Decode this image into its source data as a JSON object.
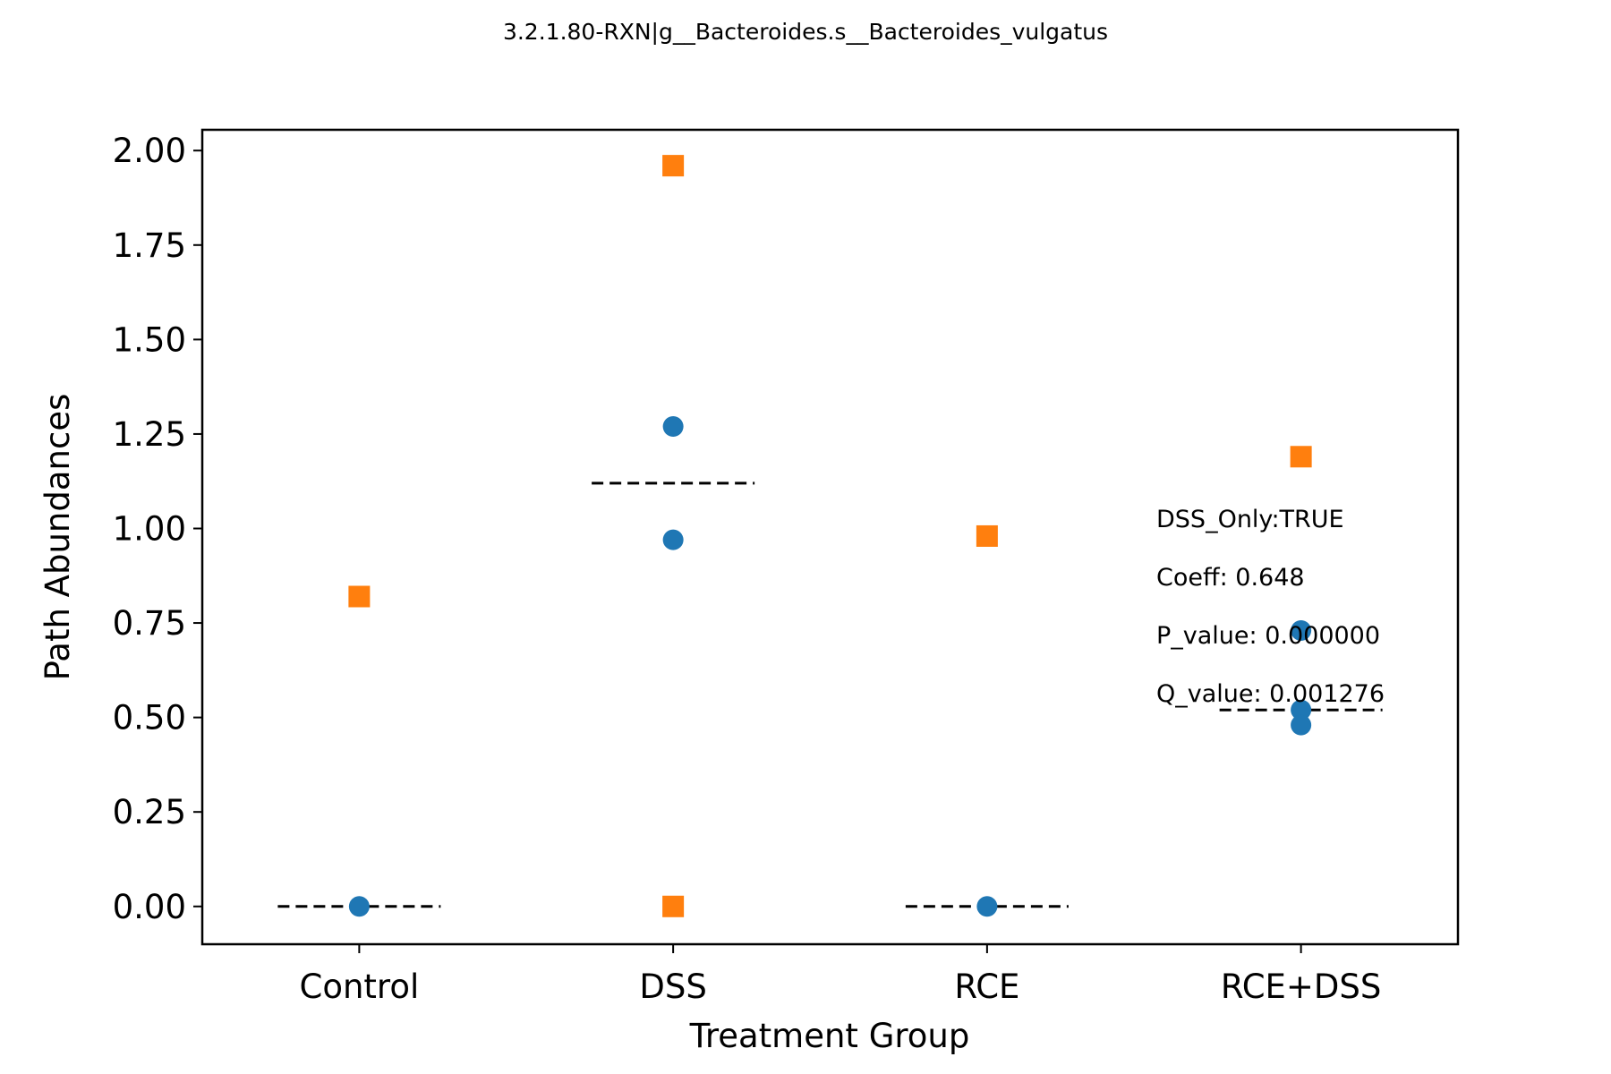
{
  "chart_data": {
    "type": "scatter",
    "title": "3.2.1.80-RXN|g__Bacteroides.s__Bacteroides_vulgatus",
    "xlabel": "Treatment Group",
    "ylabel": "Path Abundances",
    "categories": [
      "Control",
      "DSS",
      "RCE",
      "RCE+DSS"
    ],
    "ylim": [
      -0.1,
      2.055
    ],
    "yticks": [
      "0.00",
      "0.25",
      "0.50",
      "0.75",
      "1.00",
      "1.25",
      "1.50",
      "1.75",
      "2.00"
    ],
    "grid": false,
    "series": [
      {
        "marker": "circle",
        "color": "#1f77b4",
        "points": [
          {
            "x": "Control",
            "y": 0.0
          },
          {
            "x": "DSS",
            "y": 1.27
          },
          {
            "x": "DSS",
            "y": 0.97
          },
          {
            "x": "RCE",
            "y": 0.0
          },
          {
            "x": "RCE+DSS",
            "y": 0.73
          },
          {
            "x": "RCE+DSS",
            "y": 0.52
          },
          {
            "x": "RCE+DSS",
            "y": 0.48
          }
        ]
      },
      {
        "marker": "square",
        "color": "#ff7f0e",
        "points": [
          {
            "x": "Control",
            "y": 0.82
          },
          {
            "x": "DSS",
            "y": 1.96
          },
          {
            "x": "DSS",
            "y": 0.0
          },
          {
            "x": "RCE",
            "y": 0.98
          },
          {
            "x": "RCE+DSS",
            "y": 1.19
          }
        ]
      }
    ],
    "mean_lines": [
      {
        "x": "Control",
        "y": 0.0
      },
      {
        "x": "DSS",
        "y": 1.12
      },
      {
        "x": "RCE",
        "y": 0.0
      },
      {
        "x": "RCE+DSS",
        "y": 0.52
      }
    ],
    "annotations": [
      "DSS_Only:TRUE",
      "Coeff: 0.648",
      "P_value: 0.000000",
      "Q_value: 0.001276"
    ]
  }
}
